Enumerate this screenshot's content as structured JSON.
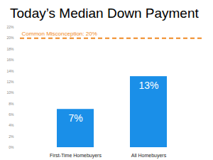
{
  "chart_data": {
    "type": "bar",
    "title": "Today’s Median Down Payment",
    "categories": [
      "First-Time Homebuyers",
      "All Homebuyers"
    ],
    "values": [
      7,
      13
    ],
    "value_labels": [
      "7%",
      "13%"
    ],
    "data_labels": true,
    "color": "#1a8fe8",
    "ylim": [
      0,
      22
    ],
    "yticks": [
      {
        "value": 0,
        "label": "0%"
      },
      {
        "value": 2,
        "label": "2%"
      },
      {
        "value": 4,
        "label": "4%"
      },
      {
        "value": 6,
        "label": "6%"
      },
      {
        "value": 8,
        "label": "8%"
      },
      {
        "value": 10,
        "label": "10%"
      },
      {
        "value": 12,
        "label": "12%"
      },
      {
        "value": 14,
        "label": "14%"
      },
      {
        "value": 16,
        "label": "16%"
      },
      {
        "value": 18,
        "label": "18%"
      },
      {
        "value": 20,
        "label": "20%"
      },
      {
        "value": 22,
        "label": "22%"
      }
    ],
    "grid": false,
    "annotations": [
      {
        "text": "Common Misconception: 20%",
        "value": 20,
        "color": "#f08a24",
        "line_style": "dashed"
      }
    ]
  }
}
